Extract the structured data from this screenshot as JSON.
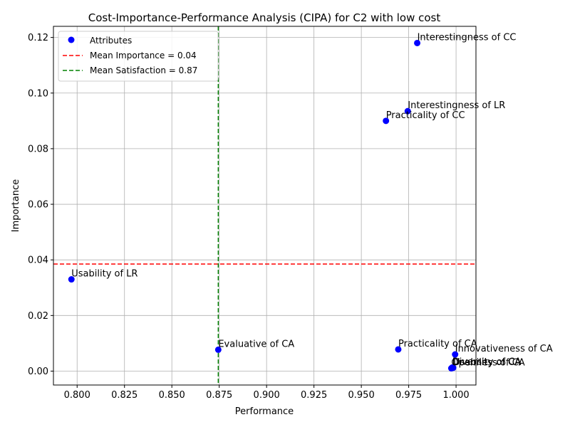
{
  "chart_data": {
    "type": "scatter",
    "title": "Cost-Importance-Performance Analysis (CIPA) for C2 with low cost",
    "xlabel": "Performance",
    "ylabel": "Importance",
    "xlim": [
      0.7875,
      1.0105
    ],
    "ylim": [
      -0.005,
      0.124
    ],
    "xticks": [
      0.8,
      0.825,
      0.85,
      0.875,
      0.9,
      0.925,
      0.95,
      0.975,
      1.0
    ],
    "xtick_labels": [
      "0.800",
      "0.825",
      "0.850",
      "0.875",
      "0.900",
      "0.925",
      "0.950",
      "0.975",
      "1.000"
    ],
    "yticks": [
      0.0,
      0.02,
      0.04,
      0.06,
      0.08,
      0.1,
      0.12
    ],
    "ytick_labels": [
      "0.00",
      "0.02",
      "0.04",
      "0.06",
      "0.08",
      "0.10",
      "0.12"
    ],
    "grid": true,
    "legend_position": "top-left",
    "series": [
      {
        "name": "Attributes",
        "color": "#0000ff",
        "points": [
          {
            "label": "Interestingness of CC",
            "x": 0.9795,
            "y": 0.118
          },
          {
            "label": "Interestingness of LR",
            "x": 0.9745,
            "y": 0.0935
          },
          {
            "label": "Practicality of CC",
            "x": 0.963,
            "y": 0.09
          },
          {
            "label": "Usability of LR",
            "x": 0.797,
            "y": 0.033
          },
          {
            "label": "Evaluative of CA",
            "x": 0.8745,
            "y": 0.0077
          },
          {
            "label": "Practicality of CA",
            "x": 0.9695,
            "y": 0.0078
          },
          {
            "label": "Innovativeness of CA",
            "x": 0.9995,
            "y": 0.006
          },
          {
            "label": "Diversity of CA",
            "x": 0.998,
            "y": 0.0013
          },
          {
            "label": "Usability of CA",
            "x": 0.9985,
            "y": 0.0012
          },
          {
            "label": "Openness of CA",
            "x": 0.9975,
            "y": 0.001
          }
        ]
      }
    ],
    "reference_lines": [
      {
        "name": "Mean Importance = 0.04",
        "orientation": "horizontal",
        "value": 0.0385,
        "color": "#ff0000"
      },
      {
        "name": "Mean Satisfaction = 0.87",
        "orientation": "vertical",
        "value": 0.8745,
        "color": "#008000"
      }
    ]
  }
}
